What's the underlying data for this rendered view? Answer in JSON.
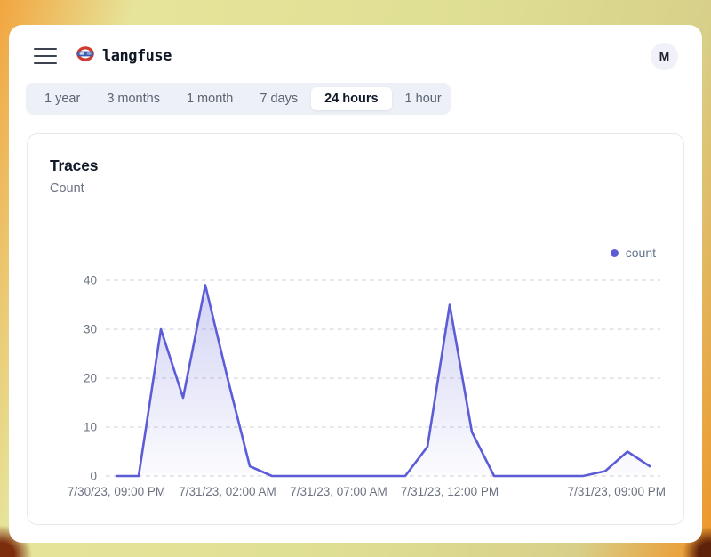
{
  "header": {
    "brand": "langfuse",
    "avatar_initial": "M"
  },
  "time_range_tabs": {
    "items": [
      {
        "label": "1 year",
        "active": false
      },
      {
        "label": "3 months",
        "active": false
      },
      {
        "label": "1 month",
        "active": false
      },
      {
        "label": "7 days",
        "active": false
      },
      {
        "label": "24 hours",
        "active": true
      },
      {
        "label": "1 hour",
        "active": false
      }
    ]
  },
  "chart_card": {
    "title": "Traces",
    "subtitle": "Count",
    "legend_label": "count",
    "legend_color": "#5b5cd6"
  },
  "chart_data": {
    "type": "area",
    "title": "Traces",
    "ylabel": "Count",
    "series_name": "count",
    "x_start": "7/30/23, 09:00 PM",
    "x_end": "7/31/23, 09:00 PM",
    "x_interval": "1 hour",
    "values": [
      0,
      0,
      30,
      16,
      39,
      20,
      2,
      0,
      0,
      0,
      0,
      0,
      0,
      0,
      6,
      35,
      9,
      0,
      0,
      0,
      0,
      0,
      1,
      5,
      2
    ],
    "ylim": [
      0,
      40
    ],
    "yticks": [
      0,
      10,
      20,
      30,
      40
    ],
    "xticks": [
      {
        "index": 0,
        "label": "7/30/23, 09:00 PM"
      },
      {
        "index": 5,
        "label": "7/31/23, 02:00 AM"
      },
      {
        "index": 10,
        "label": "7/31/23, 07:00 AM"
      },
      {
        "index": 15,
        "label": "7/31/23, 12:00 PM"
      },
      {
        "index": 24,
        "label": "7/31/23, 09:00 PM"
      }
    ],
    "grid": "dashed-horizontal",
    "legend_position": "top-right",
    "line_color": "#5b5cd6",
    "grid_color": "#c8ccd4",
    "axis_text_color": "#6b7280"
  },
  "frame_colors": {
    "orange": "#f2a53f",
    "khaki": "#dfdf94",
    "dark_corner": "#6b2a0e"
  }
}
